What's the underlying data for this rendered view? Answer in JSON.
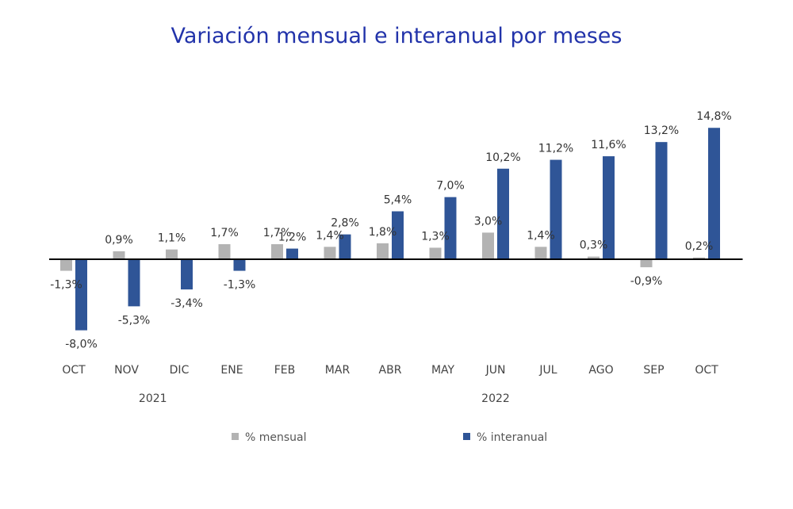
{
  "chart_data": {
    "type": "bar",
    "title": "Variación mensual e interanual por meses",
    "categories": [
      "OCT",
      "NOV",
      "DIC",
      "ENE",
      "FEB",
      "MAR",
      "ABR",
      "MAY",
      "JUN",
      "JUL",
      "AGO",
      "SEP",
      "OCT"
    ],
    "years": [
      {
        "label": "2021",
        "from": 0,
        "to": 3
      },
      {
        "label": "2022",
        "from": 4,
        "to": 12
      }
    ],
    "series": [
      {
        "name": "% mensual",
        "color": "#b3b3b3",
        "values": [
          -1.3,
          0.9,
          1.1,
          1.7,
          1.7,
          1.4,
          1.8,
          1.3,
          3.0,
          1.4,
          0.3,
          -0.9,
          0.2
        ],
        "labels": [
          "-1,3%",
          "0,9%",
          "1,1%",
          "1,7%",
          "1,7%",
          "1,4%",
          "1,8%",
          "1,3%",
          "3,0%",
          "1,4%",
          "0,3%",
          "-0,9%",
          "0,2%"
        ]
      },
      {
        "name": "% interanual",
        "color": "#2f5597",
        "values": [
          -8.0,
          -5.3,
          -3.4,
          -1.3,
          1.2,
          2.8,
          5.4,
          7.0,
          10.2,
          11.2,
          11.6,
          13.2,
          14.8
        ],
        "labels": [
          "-8,0%",
          "-5,3%",
          "-3,4%",
          "-1,3%",
          "1,2%",
          "2,8%",
          "5,4%",
          "7,0%",
          "10,2%",
          "11,2%",
          "11,6%",
          "13,2%",
          "14,8%"
        ]
      }
    ],
    "legend_position": "bottom",
    "grid": false
  }
}
